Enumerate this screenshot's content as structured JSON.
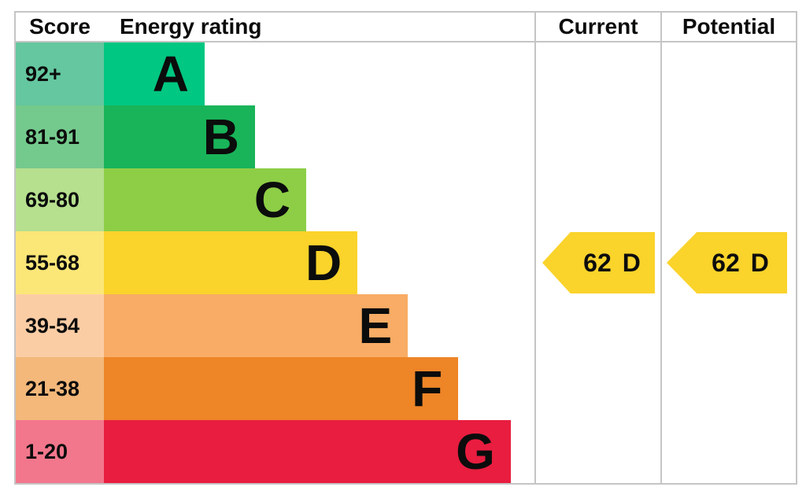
{
  "header": {
    "score": "Score",
    "energy_rating": "Energy rating",
    "current": "Current",
    "potential": "Potential"
  },
  "chart_data": {
    "type": "bar",
    "categories": [
      "A",
      "B",
      "C",
      "D",
      "E",
      "F",
      "G"
    ],
    "bands": [
      {
        "letter": "A",
        "score_range": "92+",
        "color": "#00c781",
        "score_bg": "#64c79f",
        "width_pct": 23.4
      },
      {
        "letter": "B",
        "score_range": "81-91",
        "color": "#19b459",
        "score_bg": "#74ca8d",
        "width_pct": 35.1
      },
      {
        "letter": "C",
        "score_range": "69-80",
        "color": "#8dce46",
        "score_bg": "#b6df8e",
        "width_pct": 47.0
      },
      {
        "letter": "D",
        "score_range": "55-68",
        "color": "#fad32b",
        "score_bg": "#fbe678",
        "width_pct": 58.9
      },
      {
        "letter": "E",
        "score_range": "39-54",
        "color": "#f8ac65",
        "score_bg": "#fbcda5",
        "width_pct": 70.6
      },
      {
        "letter": "F",
        "score_range": "21-38",
        "color": "#ee8527",
        "score_bg": "#f3b87a",
        "width_pct": 82.3
      },
      {
        "letter": "G",
        "score_range": "1-20",
        "color": "#e81d3f",
        "score_bg": "#f3778c",
        "width_pct": 94.5
      }
    ],
    "current": {
      "value": "62",
      "band": "D",
      "color": "#fad32b"
    },
    "potential": {
      "value": "62",
      "band": "D",
      "color": "#fad32b"
    }
  }
}
